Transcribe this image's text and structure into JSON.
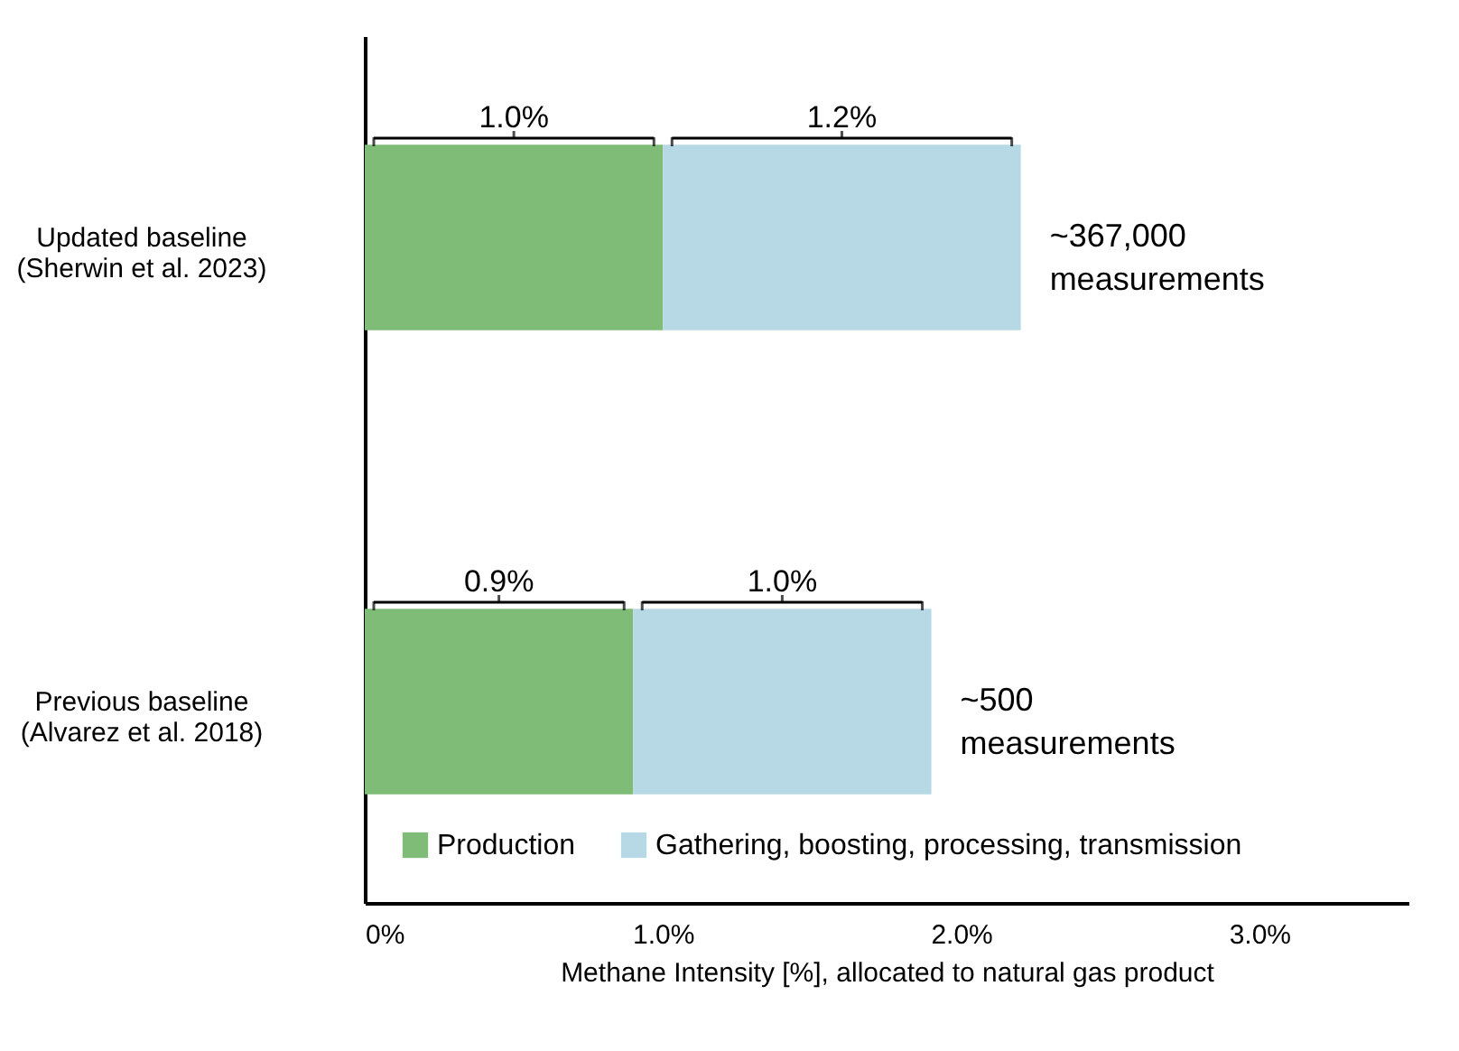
{
  "chart_data": {
    "type": "bar",
    "orientation": "horizontal",
    "stacked": true,
    "categories": [
      "Updated baseline\n(Sherwin et al. 2023)",
      "Previous baseline\n(Alvarez et al. 2018)"
    ],
    "series": [
      {
        "name": "Production",
        "color": "#7fbc78",
        "values": [
          1.0,
          0.9
        ],
        "value_labels": [
          "1.0%",
          "0.9%"
        ]
      },
      {
        "name": "Gathering, boosting, processing, transmission",
        "color": "#b7d9e5",
        "values": [
          1.2,
          1.0
        ],
        "value_labels": [
          "1.2%",
          "1.0%"
        ]
      }
    ],
    "xlabel": "Methane Intensity [%], allocated to natural gas product",
    "xlim": [
      0,
      3.5
    ],
    "xticks": [
      {
        "value": 0,
        "label": "0%"
      },
      {
        "value": 1,
        "label": "1.0%"
      },
      {
        "value": 2,
        "label": "2.0%"
      },
      {
        "value": 3,
        "label": "3.0%"
      }
    ],
    "annotations": [
      "~367,000\nmeasurements",
      "~500\nmeasurements"
    ],
    "grid": false,
    "legend": "bottom"
  }
}
